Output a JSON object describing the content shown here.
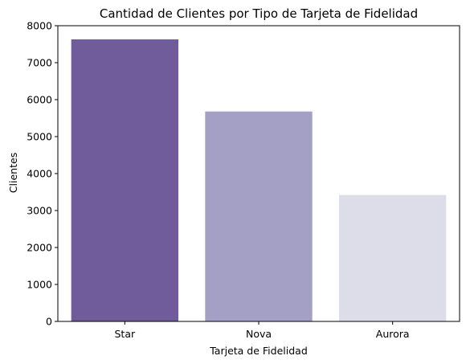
{
  "chart_data": {
    "type": "bar",
    "title": "Cantidad de Clientes por Tipo de Tarjeta de Fidelidad",
    "xlabel": "Tarjeta de Fidelidad",
    "ylabel": "Clientes",
    "categories": [
      "Star",
      "Nova",
      "Aurora"
    ],
    "values": [
      7630,
      5680,
      3420
    ],
    "colors": [
      "#705b9b",
      "#a4a0c5",
      "#dddce9"
    ],
    "ylim": [
      0,
      8000
    ],
    "yticks": [
      0,
      1000,
      2000,
      3000,
      4000,
      5000,
      6000,
      7000,
      8000
    ],
    "grid": false,
    "legend": "none"
  }
}
